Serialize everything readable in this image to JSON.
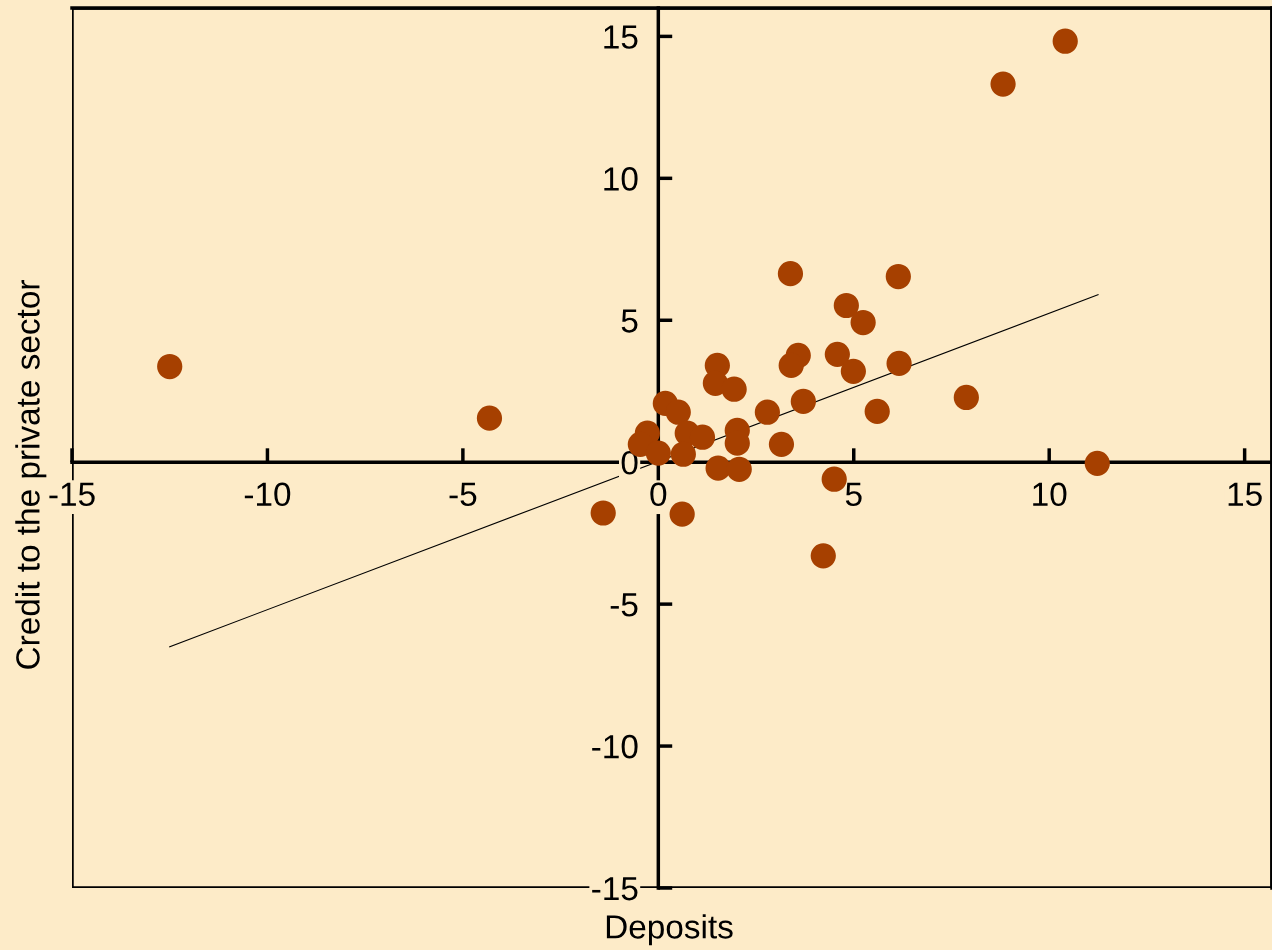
{
  "chart_data": {
    "type": "scatter",
    "xlabel": "Deposits",
    "ylabel": "Credit to the private sector",
    "xlim": [
      -15,
      15.7
    ],
    "ylim": [
      -15,
      16
    ],
    "xticks": [
      -15,
      -10,
      -5,
      0,
      5,
      10,
      15
    ],
    "yticks": [
      -15,
      -10,
      -5,
      0,
      5,
      10,
      15
    ],
    "grid": false,
    "marker": "circle",
    "series": [
      {
        "color": "#a64000",
        "x": [
          3.38,
          6.14,
          4.81,
          5.24,
          1.51,
          1.46,
          1.94,
          3.58,
          3.4,
          4.58,
          4.99,
          6.16,
          7.88,
          5.6,
          3.71,
          2.79,
          0.18,
          0.51,
          2.02,
          0.74,
          1.13,
          2.02,
          3.15,
          -0.28,
          -0.46,
          0.0,
          0.64,
          1.53,
          2.07,
          4.5,
          -1.41,
          0.61,
          4.22,
          -12.5,
          -4.32,
          8.82,
          10.41,
          11.23
        ],
        "values": [
          6.64,
          6.54,
          5.52,
          4.92,
          3.41,
          2.78,
          2.57,
          3.76,
          3.41,
          3.8,
          3.2,
          3.48,
          2.28,
          1.79,
          2.14,
          1.76,
          2.07,
          1.76,
          1.12,
          1.02,
          0.88,
          0.67,
          0.63,
          1.02,
          0.63,
          0.32,
          0.28,
          -0.21,
          -0.25,
          -0.6,
          -1.79,
          -1.83,
          -3.3,
          3.37,
          1.55,
          13.32,
          14.83,
          -0.04
        ]
      },
      {
        "type": "line",
        "color": "#000000",
        "marker": "none",
        "x": [
          -12.5,
          11.25
        ],
        "values": [
          -6.5,
          5.9
        ]
      }
    ]
  }
}
